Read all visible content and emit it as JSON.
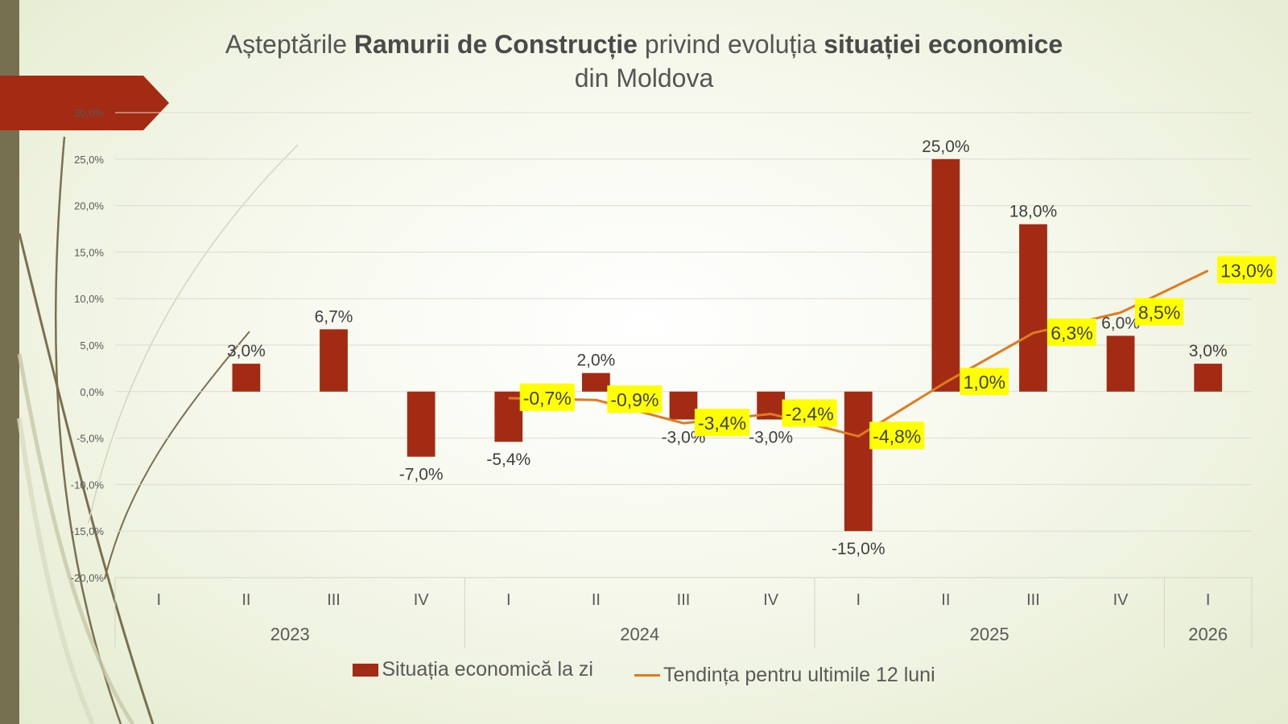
{
  "title": {
    "part1": "Așteptările ",
    "bold1": "Ramurii de Construcție",
    "part2": " privind evoluția ",
    "bold2": "situației economice",
    "line2": "din Moldova"
  },
  "colors": {
    "bar": "#a32b14",
    "line": "#e07b22",
    "label_highlight": "#ffff00",
    "arrow": "#a32b14",
    "side_bar": "#77704f"
  },
  "chart_data": {
    "type": "bar",
    "title": "Așteptările Ramurii de Construcție privind evoluția situației economice din Moldova",
    "ylim": [
      -20,
      30
    ],
    "y_ticks": [
      30,
      25,
      20,
      15,
      10,
      5,
      0,
      -5,
      -10,
      -15,
      -20
    ],
    "y_tick_labels": [
      "30,0%",
      "25,0%",
      "20,0%",
      "15,0%",
      "10,0%",
      "5,0%",
      "0,0%",
      "-5,0%",
      "-10,0%",
      "-15,0%",
      "-20,0%"
    ],
    "grid": true,
    "legend_position": "bottom",
    "categories": [
      "I",
      "II",
      "III",
      "IV",
      "I",
      "II",
      "III",
      "IV",
      "I",
      "II",
      "III",
      "IV",
      "I"
    ],
    "year_groups": [
      {
        "label": "2023",
        "start": 0,
        "count": 4
      },
      {
        "label": "2024",
        "start": 4,
        "count": 4
      },
      {
        "label": "2025",
        "start": 8,
        "count": 4
      },
      {
        "label": "2026",
        "start": 12,
        "count": 1
      }
    ],
    "series": [
      {
        "name": "Situația economică la zi",
        "type": "bar",
        "values": [
          null,
          3.0,
          6.7,
          -7.0,
          -5.4,
          2.0,
          -3.0,
          -3.0,
          -15.0,
          25.0,
          18.0,
          6.0,
          3.0
        ],
        "labels": [
          "",
          "3,0%",
          "6,7%",
          "-7,0%",
          "-5,4%",
          "2,0%",
          "-3,0%",
          "-3,0%",
          "-15,0%",
          "25,0%",
          "18,0%",
          "6,0%",
          "3,0%"
        ]
      },
      {
        "name": "Tendința  pentru ultimile 12 luni",
        "type": "line",
        "values": [
          null,
          null,
          null,
          null,
          -0.7,
          -0.9,
          -3.4,
          -2.4,
          -4.8,
          1.0,
          6.3,
          8.5,
          13.0
        ],
        "labels": [
          "",
          "",
          "",
          "",
          "-0,7%",
          "-0,9%",
          "-3,4%",
          "-2,4%",
          "-4,8%",
          "1,0%",
          "6,3%",
          "8,5%",
          "13,0%"
        ]
      }
    ]
  }
}
